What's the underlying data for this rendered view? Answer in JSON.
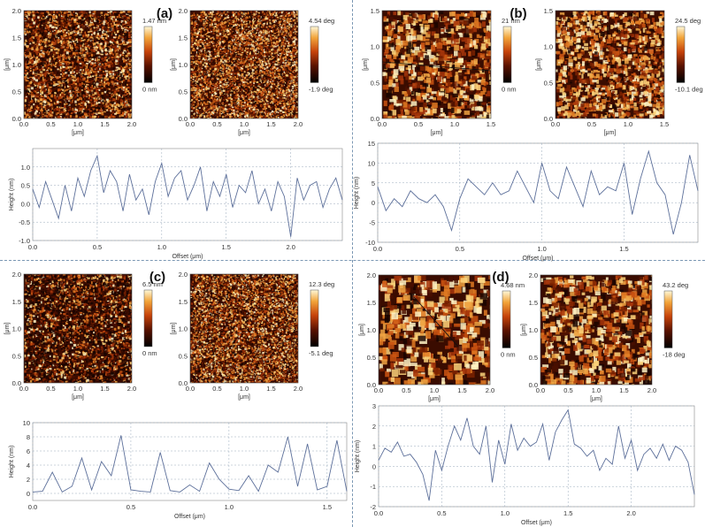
{
  "panels": [
    {
      "label": "(a)",
      "map_axis_unit": "[μm]",
      "height_map": {
        "xticks": [
          "0.0",
          "0.5",
          "1.0",
          "1.5",
          "2.0"
        ],
        "yticks": [
          "0.0",
          "0.5",
          "1.0",
          "1.5",
          "2.0"
        ],
        "scale_max": "1.47 nm",
        "scale_min": "0 nm"
      },
      "phase_map": {
        "xticks": [
          "0.0",
          "0.5",
          "1.0",
          "1.5",
          "2.0"
        ],
        "yticks": [
          "0.0",
          "0.5",
          "1.0",
          "1.5",
          "2.0"
        ],
        "scale_max": "4.54 deg",
        "scale_min": "-1.9 deg"
      },
      "profile": {
        "ylabel": "Height (nm)",
        "xlabel": "Offset (μm)",
        "yticks": [
          "-1.0",
          "-0.5",
          "0.0",
          "0.5",
          "1.0"
        ],
        "xticks": [
          "0.0",
          "0.5",
          "1.0",
          "1.5",
          "2.0"
        ]
      }
    },
    {
      "label": "(b)",
      "map_axis_unit": "[μm]",
      "height_map": {
        "xticks": [
          "0.0",
          "0.5",
          "1.0",
          "1.5"
        ],
        "yticks": [
          "0.0",
          "0.5",
          "1.0",
          "1.5"
        ],
        "scale_max": "21 nm",
        "scale_min": "0 nm"
      },
      "phase_map": {
        "xticks": [
          "0.0",
          "0.5",
          "1.0",
          "1.5"
        ],
        "yticks": [
          "0.0",
          "0.5",
          "1.0",
          "1.5"
        ],
        "scale_max": "24.5 deg",
        "scale_min": "-10.1 deg"
      },
      "profile": {
        "ylabel": "Height (nm)",
        "xlabel": "Offset (μm)",
        "yticks": [
          "-10",
          "-5",
          "0",
          "5",
          "10",
          "15"
        ],
        "xticks": [
          "0.0",
          "0.5",
          "1.0",
          "1.5"
        ]
      }
    },
    {
      "label": "(c)",
      "map_axis_unit": "[μm]",
      "height_map": {
        "xticks": [
          "0.0",
          "0.5",
          "1.0",
          "1.5",
          "2.0"
        ],
        "yticks": [
          "0.0",
          "0.5",
          "1.0",
          "1.5",
          "2.0"
        ],
        "scale_max": "6.5 nm",
        "scale_min": "0 nm"
      },
      "phase_map": {
        "xticks": [
          "0.0",
          "0.5",
          "1.0",
          "1.5",
          "2.0"
        ],
        "yticks": [
          "0.0",
          "0.5",
          "1.0",
          "1.5",
          "2.0"
        ],
        "scale_max": "12.3 deg",
        "scale_min": "-5.1 deg"
      },
      "profile": {
        "ylabel": "Height (nm)",
        "xlabel": "Offset (μm)",
        "yticks": [
          "0",
          "2",
          "4",
          "6",
          "8",
          "10"
        ],
        "xticks": [
          "0.0",
          "0.5",
          "1.0",
          "1.5"
        ]
      }
    },
    {
      "label": "(d)",
      "map_axis_unit": "[μm]",
      "height_map": {
        "xticks": [
          "0.0",
          "0.5",
          "1.0",
          "1.5",
          "2.0"
        ],
        "yticks": [
          "0.0",
          "0.5",
          "1.0",
          "1.5",
          "2.0"
        ],
        "scale_max": "4.68 nm",
        "scale_min": "0 nm"
      },
      "phase_map": {
        "xticks": [
          "0.0",
          "0.5",
          "1.0",
          "1.5",
          "2.0"
        ],
        "yticks": [
          "0.0",
          "0.5",
          "1.0",
          "1.5",
          "2.0"
        ],
        "scale_max": "43.2 deg",
        "scale_min": "-18 deg"
      },
      "profile": {
        "ylabel": "Height (nm)",
        "xlabel": "Offset (μm)",
        "yticks": [
          "-2",
          "-1",
          "0",
          "1",
          "2",
          "3"
        ],
        "xticks": [
          "0.0",
          "0.5",
          "1.0",
          "1.5",
          "2.0"
        ]
      }
    }
  ],
  "chart_data": [
    {
      "type": "line",
      "panel": "(a)",
      "xlabel": "Offset (μm)",
      "ylabel": "Height (nm)",
      "xlim": [
        0,
        2.4
      ],
      "ylim": [
        -1,
        1.5
      ],
      "x": [
        0,
        0.05,
        0.1,
        0.15,
        0.2,
        0.25,
        0.3,
        0.35,
        0.4,
        0.45,
        0.5,
        0.55,
        0.6,
        0.65,
        0.7,
        0.75,
        0.8,
        0.85,
        0.9,
        0.95,
        1.0,
        1.05,
        1.1,
        1.15,
        1.2,
        1.25,
        1.3,
        1.35,
        1.4,
        1.45,
        1.5,
        1.55,
        1.6,
        1.65,
        1.7,
        1.75,
        1.8,
        1.85,
        1.9,
        1.95,
        2.0,
        2.05,
        2.1,
        2.15,
        2.2,
        2.25,
        2.3,
        2.35,
        2.4
      ],
      "y": [
        0.4,
        -0.1,
        0.6,
        0.1,
        -0.4,
        0.5,
        -0.2,
        0.7,
        0.2,
        0.9,
        1.3,
        0.3,
        0.9,
        0.6,
        -0.2,
        0.8,
        0.1,
        0.4,
        -0.3,
        0.6,
        1.1,
        0.2,
        0.7,
        0.9,
        0.1,
        0.5,
        1.0,
        -0.2,
        0.6,
        0.2,
        0.8,
        -0.1,
        0.5,
        0.3,
        0.9,
        0.0,
        0.4,
        -0.2,
        0.6,
        0.2,
        -0.9,
        0.7,
        0.1,
        0.5,
        0.6,
        -0.1,
        0.4,
        0.7,
        0.1
      ]
    },
    {
      "type": "line",
      "panel": "(b)",
      "xlabel": "Offset (μm)",
      "ylabel": "Height (nm)",
      "xlim": [
        0,
        1.95
      ],
      "ylim": [
        -10,
        15
      ],
      "x": [
        0,
        0.05,
        0.1,
        0.15,
        0.2,
        0.25,
        0.3,
        0.35,
        0.4,
        0.45,
        0.5,
        0.55,
        0.6,
        0.65,
        0.7,
        0.75,
        0.8,
        0.85,
        0.9,
        0.95,
        1.0,
        1.05,
        1.1,
        1.15,
        1.2,
        1.25,
        1.3,
        1.35,
        1.4,
        1.45,
        1.5,
        1.55,
        1.6,
        1.65,
        1.7,
        1.75,
        1.8,
        1.85,
        1.9,
        1.95
      ],
      "y": [
        4,
        -2,
        1,
        -1,
        3,
        1,
        0,
        2,
        -1,
        -7,
        1,
        6,
        4,
        2,
        5,
        2,
        3,
        8,
        4,
        0,
        10,
        3,
        1,
        9,
        4,
        -1,
        8,
        2,
        4,
        3,
        10,
        -3,
        6,
        13,
        5,
        2,
        -8,
        0,
        12,
        3
      ]
    },
    {
      "type": "line",
      "panel": "(c)",
      "xlabel": "Offset (μm)",
      "ylabel": "Height (nm)",
      "xlim": [
        0,
        1.6
      ],
      "ylim": [
        -1,
        10
      ],
      "x": [
        0,
        0.05,
        0.1,
        0.15,
        0.2,
        0.25,
        0.3,
        0.35,
        0.4,
        0.45,
        0.5,
        0.55,
        0.6,
        0.65,
        0.7,
        0.75,
        0.8,
        0.85,
        0.9,
        0.95,
        1.0,
        1.05,
        1.1,
        1.15,
        1.2,
        1.25,
        1.3,
        1.35,
        1.4,
        1.45,
        1.5,
        1.55,
        1.6
      ],
      "y": [
        0.2,
        0.3,
        3,
        0.2,
        1,
        5,
        0.5,
        4.5,
        2.5,
        8.2,
        0.5,
        0.3,
        0.2,
        5.8,
        0.4,
        0.2,
        1.2,
        0.3,
        4.3,
        2,
        0.6,
        0.4,
        2.5,
        0.3,
        4,
        3,
        8,
        1,
        7,
        0.5,
        1,
        7.5,
        0.3
      ]
    },
    {
      "type": "line",
      "panel": "(d)",
      "xlabel": "Offset (μm)",
      "ylabel": "Height (nm)",
      "xlim": [
        0,
        2.5
      ],
      "ylim": [
        -2,
        3
      ],
      "x": [
        0,
        0.05,
        0.1,
        0.15,
        0.2,
        0.25,
        0.3,
        0.35,
        0.4,
        0.45,
        0.5,
        0.55,
        0.6,
        0.65,
        0.7,
        0.75,
        0.8,
        0.85,
        0.9,
        0.95,
        1.0,
        1.05,
        1.1,
        1.15,
        1.2,
        1.25,
        1.3,
        1.35,
        1.4,
        1.45,
        1.5,
        1.55,
        1.6,
        1.65,
        1.7,
        1.75,
        1.8,
        1.85,
        1.9,
        1.95,
        2.0,
        2.05,
        2.1,
        2.15,
        2.2,
        2.25,
        2.3,
        2.35,
        2.4,
        2.45,
        2.5
      ],
      "y": [
        0.3,
        0.9,
        0.7,
        1.2,
        0.5,
        0.6,
        0.2,
        -0.4,
        -1.7,
        0.8,
        -0.2,
        1.0,
        2.0,
        1.3,
        2.4,
        1.0,
        0.6,
        2.0,
        -0.8,
        1.3,
        0.1,
        2.1,
        0.8,
        1.4,
        1.0,
        1.2,
        2.1,
        0.3,
        1.7,
        2.3,
        2.8,
        1.1,
        0.9,
        0.5,
        0.8,
        -0.2,
        0.4,
        0.1,
        2.0,
        0.4,
        1.3,
        -0.2,
        0.6,
        0.9,
        0.4,
        1.1,
        0.3,
        1.0,
        0.8,
        0.2,
        -1.4
      ]
    }
  ]
}
